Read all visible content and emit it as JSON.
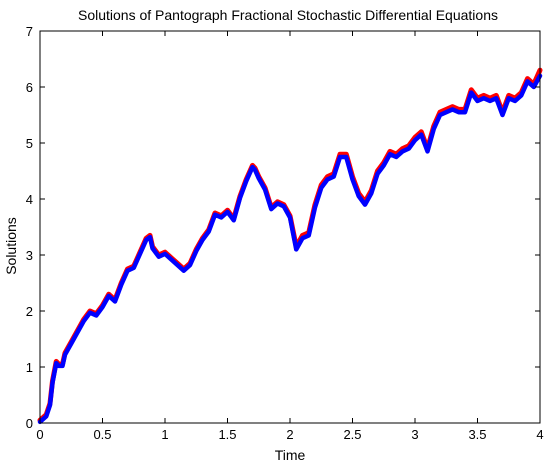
{
  "chart_data": {
    "type": "line",
    "title": "Solutions of Pantograph Fractional Stochastic Differential Equations",
    "xlabel": "Time",
    "ylabel": "Solutions",
    "xlim": [
      0,
      4
    ],
    "ylim": [
      0,
      7
    ],
    "xticks": [
      "0",
      "0.5",
      "1",
      "1.5",
      "2",
      "2.5",
      "3",
      "3.5",
      "4"
    ],
    "yticks": [
      "0",
      "1",
      "2",
      "3",
      "4",
      "5",
      "6",
      "7"
    ],
    "grid": false,
    "colors": {
      "series_red": "#ff0000",
      "series_blue": "#0000ff",
      "axes": "#000000",
      "background": "#ffffff"
    },
    "series": [
      {
        "color": "#ff0000",
        "x": [
          0,
          0.05,
          0.08,
          0.1,
          0.13,
          0.15,
          0.18,
          0.2,
          0.25,
          0.3,
          0.35,
          0.4,
          0.45,
          0.5,
          0.55,
          0.6,
          0.65,
          0.7,
          0.75,
          0.8,
          0.85,
          0.88,
          0.9,
          0.95,
          1.0,
          1.05,
          1.1,
          1.15,
          1.2,
          1.25,
          1.3,
          1.35,
          1.4,
          1.45,
          1.5,
          1.55,
          1.6,
          1.65,
          1.7,
          1.72,
          1.75,
          1.8,
          1.85,
          1.9,
          1.95,
          2.0,
          2.05,
          2.1,
          2.15,
          2.2,
          2.25,
          2.3,
          2.35,
          2.4,
          2.45,
          2.5,
          2.55,
          2.6,
          2.65,
          2.7,
          2.75,
          2.8,
          2.85,
          2.9,
          2.95,
          3.0,
          3.05,
          3.1,
          3.15,
          3.2,
          3.25,
          3.3,
          3.35,
          3.4,
          3.45,
          3.5,
          3.55,
          3.6,
          3.65,
          3.7,
          3.75,
          3.8,
          3.85,
          3.9,
          3.95,
          4.0
        ],
        "y": [
          0.05,
          0.15,
          0.35,
          0.75,
          1.1,
          1.05,
          1.05,
          1.25,
          1.45,
          1.65,
          1.85,
          2.0,
          1.95,
          2.1,
          2.3,
          2.2,
          2.5,
          2.75,
          2.8,
          3.05,
          3.3,
          3.35,
          3.15,
          3.0,
          3.05,
          2.95,
          2.85,
          2.75,
          2.85,
          3.1,
          3.3,
          3.45,
          3.75,
          3.7,
          3.8,
          3.65,
          4.05,
          4.35,
          4.6,
          4.55,
          4.4,
          4.2,
          3.85,
          3.95,
          3.9,
          3.7,
          3.15,
          3.35,
          3.4,
          3.9,
          4.25,
          4.4,
          4.45,
          4.8,
          4.8,
          4.4,
          4.1,
          3.95,
          4.15,
          4.5,
          4.65,
          4.85,
          4.8,
          4.9,
          4.95,
          5.1,
          5.2,
          4.9,
          5.3,
          5.55,
          5.6,
          5.65,
          5.6,
          5.6,
          5.95,
          5.8,
          5.85,
          5.8,
          5.85,
          5.55,
          5.85,
          5.8,
          5.9,
          6.15,
          6.05,
          6.3
        ]
      },
      {
        "color": "#0000ff",
        "x": [
          0,
          0.05,
          0.08,
          0.1,
          0.13,
          0.15,
          0.18,
          0.2,
          0.25,
          0.3,
          0.35,
          0.4,
          0.45,
          0.5,
          0.55,
          0.6,
          0.65,
          0.7,
          0.75,
          0.8,
          0.85,
          0.88,
          0.9,
          0.95,
          1.0,
          1.05,
          1.1,
          1.15,
          1.2,
          1.25,
          1.3,
          1.35,
          1.4,
          1.45,
          1.5,
          1.55,
          1.6,
          1.65,
          1.7,
          1.72,
          1.75,
          1.8,
          1.85,
          1.9,
          1.95,
          2.0,
          2.05,
          2.1,
          2.15,
          2.2,
          2.25,
          2.3,
          2.35,
          2.4,
          2.45,
          2.5,
          2.55,
          2.6,
          2.65,
          2.7,
          2.75,
          2.8,
          2.85,
          2.9,
          2.95,
          3.0,
          3.05,
          3.1,
          3.15,
          3.2,
          3.25,
          3.3,
          3.35,
          3.4,
          3.45,
          3.5,
          3.55,
          3.6,
          3.65,
          3.7,
          3.75,
          3.8,
          3.85,
          3.9,
          3.95,
          4.0
        ],
        "y": [
          0.02,
          0.12,
          0.32,
          0.72,
          1.07,
          1.02,
          1.02,
          1.22,
          1.42,
          1.62,
          1.82,
          1.97,
          1.92,
          2.07,
          2.27,
          2.17,
          2.47,
          2.72,
          2.77,
          3.02,
          3.27,
          3.32,
          3.12,
          2.97,
          3.02,
          2.92,
          2.82,
          2.72,
          2.82,
          3.07,
          3.27,
          3.42,
          3.72,
          3.67,
          3.77,
          3.62,
          4.02,
          4.32,
          4.57,
          4.52,
          4.37,
          4.17,
          3.82,
          3.92,
          3.87,
          3.67,
          3.1,
          3.3,
          3.35,
          3.85,
          4.2,
          4.35,
          4.4,
          4.75,
          4.75,
          4.35,
          4.05,
          3.9,
          4.1,
          4.45,
          4.6,
          4.8,
          4.75,
          4.85,
          4.9,
          5.05,
          5.15,
          4.85,
          5.25,
          5.5,
          5.55,
          5.6,
          5.55,
          5.55,
          5.9,
          5.75,
          5.8,
          5.75,
          5.8,
          5.5,
          5.8,
          5.75,
          5.85,
          6.1,
          6.0,
          6.2
        ]
      }
    ]
  }
}
